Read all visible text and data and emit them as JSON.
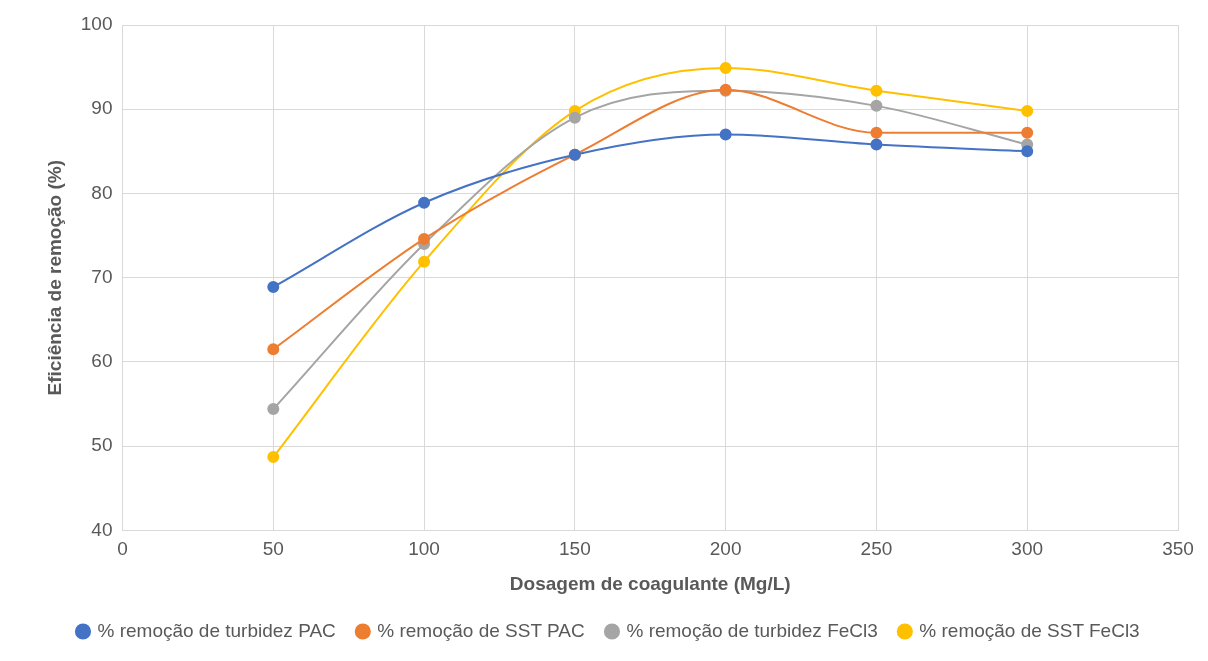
{
  "chart_data": {
    "type": "line",
    "xlabel": "Dosagem de coagulante (Mg/L)",
    "ylabel": "Eficiência de remoção (%)",
    "x": [
      50,
      100,
      150,
      200,
      250,
      300
    ],
    "series": [
      {
        "name": "% remoção de turbidez PAC",
        "color": "#4472c4",
        "values": [
          68.9,
          78.9,
          84.6,
          87.0,
          85.8,
          85.0
        ]
      },
      {
        "name": "% remoção de SST PAC",
        "color": "#ed7d31",
        "values": [
          61.5,
          74.6,
          84.6,
          92.3,
          87.2,
          87.2
        ]
      },
      {
        "name": "% remoção de turbidez FeCl3",
        "color": "#a5a5a5",
        "values": [
          54.4,
          74.0,
          89.0,
          92.2,
          90.4,
          85.8
        ]
      },
      {
        "name": "% remoção de SST FeCl3",
        "color": "#ffc000",
        "values": [
          48.7,
          71.9,
          89.8,
          94.9,
          92.2,
          89.8
        ]
      }
    ],
    "xlim": [
      0,
      350
    ],
    "xticks": [
      0,
      50,
      100,
      150,
      200,
      250,
      300,
      350
    ],
    "ylim": [
      40,
      100
    ],
    "yticks": [
      40,
      50,
      60,
      70,
      80,
      90,
      100
    ],
    "grid": true,
    "legend": "bottom",
    "marker": "circle",
    "line_style": "solid"
  }
}
